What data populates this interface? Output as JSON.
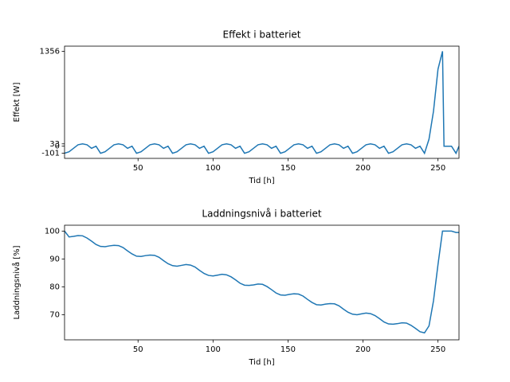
{
  "chart_data": [
    {
      "type": "line",
      "title": "Effekt i batteriet",
      "xlabel": "Tid [h]",
      "ylabel": "Effekt [W]",
      "color": "#1f77b4",
      "x": [
        1,
        4,
        7,
        10,
        13,
        16,
        19,
        22,
        25,
        28,
        31,
        34,
        37,
        40,
        43,
        46,
        49,
        52,
        55,
        58,
        61,
        64,
        67,
        70,
        73,
        76,
        79,
        82,
        85,
        88,
        91,
        94,
        97,
        100,
        103,
        106,
        109,
        112,
        115,
        118,
        121,
        124,
        127,
        130,
        133,
        136,
        139,
        142,
        145,
        148,
        151,
        154,
        157,
        160,
        163,
        166,
        169,
        172,
        175,
        178,
        181,
        184,
        187,
        190,
        193,
        196,
        199,
        202,
        205,
        208,
        211,
        214,
        217,
        220,
        223,
        226,
        229,
        232,
        235,
        238,
        241,
        244,
        247,
        250,
        253,
        254,
        259,
        262,
        264
      ],
      "values": [
        -101,
        -80,
        -30,
        20,
        33,
        20,
        -30,
        0,
        -101,
        -80,
        -30,
        20,
        33,
        20,
        -30,
        0,
        -101,
        -80,
        -30,
        20,
        33,
        20,
        -30,
        0,
        -101,
        -80,
        -30,
        20,
        33,
        20,
        -30,
        0,
        -101,
        -80,
        -30,
        20,
        33,
        20,
        -30,
        0,
        -101,
        -80,
        -30,
        20,
        33,
        20,
        -30,
        0,
        -101,
        -80,
        -30,
        20,
        33,
        20,
        -30,
        0,
        -101,
        -80,
        -30,
        20,
        33,
        20,
        -30,
        0,
        -101,
        -80,
        -30,
        20,
        33,
        20,
        -30,
        0,
        -101,
        -80,
        -30,
        20,
        33,
        20,
        -30,
        0,
        -101,
        100,
        500,
        1100,
        1356,
        0,
        0,
        -101,
        0
      ],
      "xlim": [
        1,
        264
      ],
      "ylim": [
        -174,
        1429
      ],
      "xticks": [
        50,
        100,
        150,
        200,
        250
      ],
      "yticks": [
        -101,
        0,
        33,
        1356
      ]
    },
    {
      "type": "line",
      "title": "Laddningsnivå i batteriet",
      "xlabel": "Tid [h]",
      "ylabel": "Laddningsnivå [%]",
      "color": "#1f77b4",
      "x": [
        1,
        4,
        7,
        10,
        13,
        16,
        19,
        22,
        25,
        28,
        31,
        34,
        37,
        40,
        43,
        46,
        49,
        52,
        55,
        58,
        61,
        64,
        67,
        70,
        73,
        76,
        79,
        82,
        85,
        88,
        91,
        94,
        97,
        100,
        103,
        106,
        109,
        112,
        115,
        118,
        121,
        124,
        127,
        130,
        133,
        136,
        139,
        142,
        145,
        148,
        151,
        154,
        157,
        160,
        163,
        166,
        169,
        172,
        175,
        178,
        181,
        184,
        187,
        190,
        193,
        196,
        199,
        202,
        205,
        208,
        211,
        214,
        217,
        220,
        223,
        226,
        229,
        232,
        235,
        238,
        241,
        244,
        247,
        250,
        253,
        256,
        259,
        262,
        264
      ],
      "values": [
        100,
        97.9,
        98.1,
        98.4,
        98.3,
        97.5,
        96.4,
        95.2,
        94.5,
        94.4,
        94.7,
        94.9,
        94.8,
        94.1,
        92.9,
        91.8,
        91.0,
        90.9,
        91.2,
        91.4,
        91.3,
        90.6,
        89.4,
        88.3,
        87.6,
        87.4,
        87.7,
        88.0,
        87.8,
        87.1,
        85.9,
        84.8,
        84.1,
        83.9,
        84.2,
        84.5,
        84.3,
        83.6,
        82.5,
        81.3,
        80.6,
        80.5,
        80.7,
        81.0,
        80.9,
        80.1,
        79.0,
        77.8,
        77.1,
        77.0,
        77.3,
        77.5,
        77.4,
        76.7,
        75.5,
        74.4,
        73.6,
        73.5,
        73.8,
        74.0,
        73.9,
        73.2,
        72.0,
        70.9,
        70.2,
        70.0,
        70.3,
        70.6,
        70.4,
        69.7,
        68.6,
        67.4,
        66.7,
        66.6,
        66.8,
        67.1,
        67.0,
        66.2,
        65.1,
        63.9,
        63.5,
        66,
        75,
        88,
        100,
        100,
        100,
        99.5,
        99.5
      ],
      "xlim": [
        1,
        264
      ],
      "ylim": [
        61,
        102.1
      ],
      "xticks": [
        50,
        100,
        150,
        200,
        250
      ],
      "yticks": [
        70,
        80,
        90,
        100
      ]
    }
  ]
}
